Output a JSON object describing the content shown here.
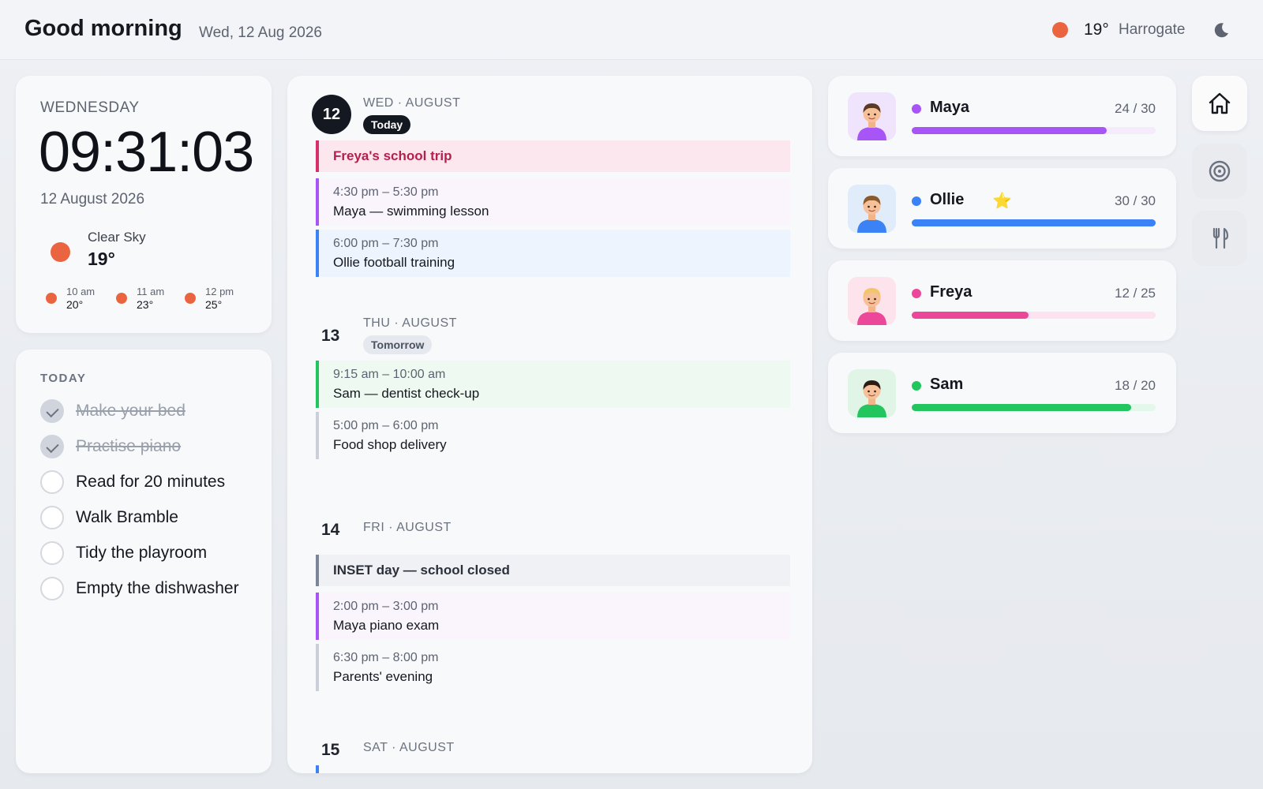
{
  "header": {
    "greeting": "Good morning",
    "date": "Wed, 12 Aug 2026",
    "temperature": "19°",
    "location": "Harrogate",
    "weather_icon": "sun-icon",
    "theme_icon": "moon-icon"
  },
  "clock_card": {
    "weekday": "WEDNESDAY",
    "time": "09:31:03",
    "date": "12 August 2026",
    "condition": "Clear Sky",
    "temperature": "19°",
    "forecast": [
      {
        "time": "10 am",
        "temp": "20°"
      },
      {
        "time": "11 am",
        "temp": "23°"
      },
      {
        "time": "12 pm",
        "temp": "25°"
      }
    ]
  },
  "todo": {
    "title": "TODAY",
    "items": [
      {
        "label": "Make your bed",
        "done": true
      },
      {
        "label": "Practise piano",
        "done": true
      },
      {
        "label": "Read for 20 minutes",
        "done": false
      },
      {
        "label": "Walk Bramble",
        "done": false
      },
      {
        "label": "Tidy the playroom",
        "done": false
      },
      {
        "label": "Empty the dishwasher",
        "done": false
      }
    ]
  },
  "calendar": {
    "days": [
      {
        "num": "12",
        "header": "WED · AUGUST",
        "badge": "Today",
        "events": [
          {
            "title": "Freya's school trip",
            "all_day": true,
            "color": "#d62f6a",
            "bg": "#fde7ee",
            "text_color": "#b3204f"
          },
          {
            "time": "4:30 pm – 5:30 pm",
            "title": "Maya — swimming lesson",
            "color": "#a855f7",
            "bg": "#faf4fd"
          },
          {
            "time": "6:00 pm – 7:30 pm",
            "title": "Ollie football training",
            "color": "#3b82f6",
            "bg": "#eef4fd"
          }
        ]
      },
      {
        "num": "13",
        "header": "THU · AUGUST",
        "badge": "Tomorrow",
        "events": [
          {
            "time": "9:15 am – 10:00 am",
            "title": "Sam — dentist check-up",
            "color": "#22c55e",
            "bg": "#eefaf1"
          },
          {
            "time": "5:00 pm – 6:00 pm",
            "title": "Food shop delivery",
            "color": "#cbd0d8",
            "bg": "#f8f9fb"
          }
        ]
      },
      {
        "num": "14",
        "header": "FRI · AUGUST",
        "events": [
          {
            "title": "INSET day — school closed",
            "all_day": true,
            "color": "#7c8698",
            "bg": "#eff1f4",
            "text_color": "#2b303a"
          },
          {
            "time": "2:00 pm – 3:00 pm",
            "title": "Maya piano exam",
            "color": "#a855f7",
            "bg": "#faf4fd"
          },
          {
            "time": "6:30 pm – 8:00 pm",
            "title": "Parents' evening",
            "color": "#cbd0d8",
            "bg": "#f8f9fb"
          }
        ]
      },
      {
        "num": "15",
        "header": "SAT · AUGUST"
      }
    ]
  },
  "family": [
    {
      "name": "Maya",
      "score": "24 / 30",
      "progress": 0.8,
      "color": "#a855f7",
      "track": "#f6eafd",
      "avatar_bg": "#efe4fb",
      "shirt": "#a855f7",
      "hair": "#5b3a24",
      "star": false
    },
    {
      "name": "Ollie",
      "score": "30 / 30",
      "progress": 1.0,
      "color": "#3b82f6",
      "track": "#e3edfd",
      "avatar_bg": "#e1ecfb",
      "shirt": "#3b82f6",
      "hair": "#8a5a2b",
      "star": true
    },
    {
      "name": "Freya",
      "score": "12 / 25",
      "progress": 0.48,
      "color": "#ec4899",
      "track": "#fde3ef",
      "avatar_bg": "#fde3ec",
      "shirt": "#ec4899",
      "hair": "#f2c46b",
      "star": false
    },
    {
      "name": "Sam",
      "score": "18 / 20",
      "progress": 0.9,
      "color": "#22c55e",
      "track": "#e3f8ea",
      "avatar_bg": "#e0f5e6",
      "shirt": "#22c55e",
      "hair": "#2b1d14",
      "star": false
    }
  ],
  "nav": [
    {
      "name": "home",
      "icon": "home-icon",
      "active": true
    },
    {
      "name": "target",
      "icon": "target-icon",
      "active": false
    },
    {
      "name": "meals",
      "icon": "fork-knife-icon",
      "active": false
    }
  ]
}
